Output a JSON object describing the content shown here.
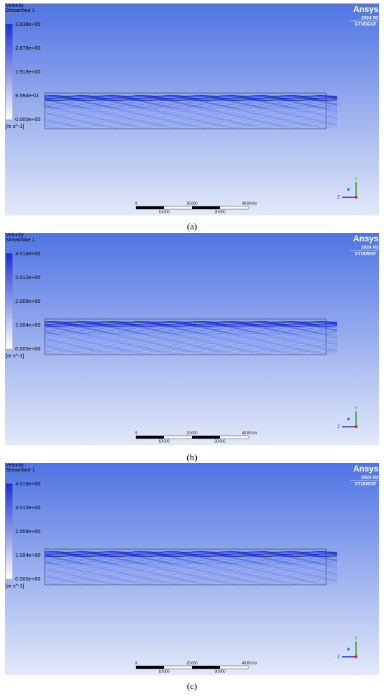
{
  "panels": [
    {
      "legend": {
        "variable": "Velocity",
        "object": "Streamline 1",
        "ticks": [
          "3.838e+00",
          "2.878e+00",
          "1.919e+00",
          "9.594e-01",
          "0.000e+00"
        ],
        "unit": "[m s^-1]"
      },
      "logo": {
        "brand": "Ansys",
        "version": "2024 R2",
        "edition": "STUDENT"
      },
      "scale": {
        "top": [
          "0",
          "20.000",
          "40.00",
          "(m)"
        ],
        "bottom": [
          "10.000",
          "30.000"
        ]
      },
      "axes": {
        "y": "Y",
        "z": "Z"
      },
      "caption": "(a)"
    },
    {
      "legend": {
        "variable": "Velocity",
        "object": "Streamline 1",
        "ticks": [
          "4.016e+00",
          "3.012e+00",
          "2.008e+00",
          "1.004e+00",
          "0.000e+00"
        ],
        "unit": "[m s^-1]"
      },
      "logo": {
        "brand": "Ansys",
        "version": "2024 R2",
        "edition": "STUDENT"
      },
      "scale": {
        "top": [
          "0",
          "20.000",
          "40.00",
          "(m)"
        ],
        "bottom": [
          "10.000",
          "30.000"
        ]
      },
      "axes": {
        "y": "Y",
        "z": "Z"
      },
      "caption": "(b)"
    },
    {
      "legend": {
        "variable": "Velocity",
        "object": "Streamline 1",
        "ticks": [
          "4.016e+00",
          "3.012e+00",
          "2.008e+00",
          "1.004e+00",
          "0.000e+00"
        ],
        "unit": "[m s^-1]"
      },
      "logo": {
        "brand": "Ansys",
        "version": "2024 R2",
        "edition": "STUDENT"
      },
      "scale": {
        "top": [
          "0",
          "20.000",
          "40.00",
          "(m)"
        ],
        "bottom": [
          "10.000",
          "30.000"
        ]
      },
      "axes": {
        "y": "Y",
        "z": "Z"
      },
      "caption": "(c)"
    }
  ]
}
